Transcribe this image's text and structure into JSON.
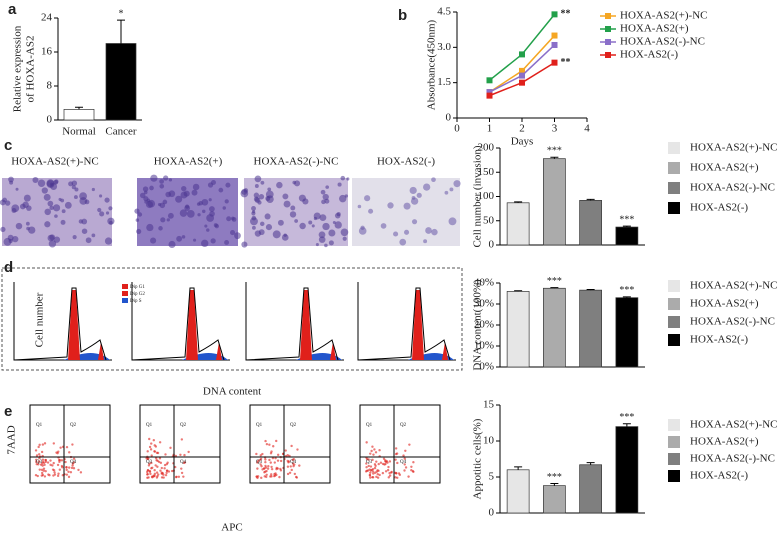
{
  "chart_data": [
    {
      "type": "bar",
      "panel": "a",
      "categories": [
        "Normal",
        "Cancer"
      ],
      "values": [
        2.5,
        18
      ],
      "errors": [
        0.5,
        5.5
      ],
      "significance": [
        null,
        "*"
      ],
      "colors": [
        "#ffffff",
        "#000000"
      ],
      "ylim": [
        0,
        24
      ],
      "yticks": [
        0,
        8,
        16,
        24
      ],
      "ylabel": [
        "Relative expression",
        "of HOXA-AS2"
      ]
    },
    {
      "type": "line",
      "panel": "b",
      "x": [
        1,
        2,
        3
      ],
      "xlim": [
        0,
        4
      ],
      "xticks": [
        0,
        1,
        2,
        3,
        4
      ],
      "ylim": [
        0,
        4.5
      ],
      "yticks": [
        0,
        1.5,
        {
          "value": 3,
          "label": "3.0"
        },
        4.5
      ],
      "xlabel": "Days",
      "ylabel": "Absorbance(450nm)",
      "series": [
        {
          "name": "HOXA-AS2(+)-NC",
          "color": "#f5a623",
          "values": [
            1.1,
            2.0,
            3.5
          ]
        },
        {
          "name": "HOXA-AS2(+)",
          "color": "#22a04a",
          "values": [
            1.6,
            2.7,
            4.4
          ],
          "end_label": "**"
        },
        {
          "name": "HOXA-AS2(-)-NC",
          "color": "#8a6fc9",
          "values": [
            1.1,
            1.8,
            3.1
          ]
        },
        {
          "name": "HOX-AS2(-)",
          "color": "#e0201b",
          "values": [
            0.95,
            1.5,
            2.35
          ],
          "end_label": "**"
        }
      ]
    },
    {
      "type": "bar",
      "panel": "c",
      "legend": "right",
      "image_labels": [
        "HOXA-AS2(+)-NC",
        "HOXA-AS2(+)",
        "HOXA-AS2(-)-NC",
        "HOX-AS2(-)"
      ],
      "categories": [
        "HOXA-AS2(+)-NC",
        "HOXA-AS2(+)",
        "HOXA-AS2(-)-NC",
        "HOX-AS2(-)"
      ],
      "colors": [
        "#e6e6e6",
        "#ababab",
        "#7f7f7f",
        "#000000"
      ],
      "values": [
        87,
        178,
        92,
        37
      ],
      "errors": [
        2,
        3,
        2,
        2
      ],
      "significance": [
        null,
        "***",
        null,
        "***"
      ],
      "ylim": [
        0,
        200
      ],
      "yticks": [
        0,
        50,
        100,
        150,
        200
      ],
      "ylabel": "Cell number (invasion)"
    },
    {
      "type": "bar",
      "panel": "d",
      "legend": "right",
      "plot_ylabel": "Cell number",
      "plot_xlabel": "DNA content",
      "inset_legend": [
        {
          "name": "Dip G1",
          "color": "#e0201b"
        },
        {
          "name": "Dip G2",
          "color": "#e0201b"
        },
        {
          "name": "Dip S",
          "color": "#2255cc"
        }
      ],
      "categories": [
        "HOXA-AS2(+)-NC",
        "HOXA-AS2(+)",
        "HOXA-AS2(-)-NC",
        "HOX-AS2(-)"
      ],
      "colors": [
        "#e6e6e6",
        "#ababab",
        "#7f7f7f",
        "#000000"
      ],
      "values": [
        36,
        37.5,
        36.6,
        33
      ],
      "errors": [
        0.3,
        0.3,
        0.3,
        0.4
      ],
      "significance": [
        null,
        "***",
        null,
        "***"
      ],
      "ylim": [
        0,
        40
      ],
      "yticks": [
        {
          "value": 0,
          "label": "0%"
        },
        {
          "value": 10,
          "label": "10%"
        },
        {
          "value": 20,
          "label": "20%"
        },
        {
          "value": 30,
          "label": "30%"
        },
        {
          "value": 40,
          "label": "40%"
        }
      ],
      "ylabel": "DNA content(100%)"
    },
    {
      "type": "bar",
      "panel": "e",
      "legend": "right",
      "plot_ylabel": "7AAD",
      "plot_xlabel": "APC",
      "quadrant_labels": [
        "Q1",
        "Q2",
        "Q3",
        "Q4"
      ],
      "categories": [
        "HOXA-AS2(+)-NC",
        "HOXA-AS2(+)",
        "HOXA-AS2(-)-NC",
        "HOX-AS2(-)"
      ],
      "colors": [
        "#e6e6e6",
        "#ababab",
        "#7f7f7f",
        "#000000"
      ],
      "values": [
        6,
        3.8,
        6.7,
        12
      ],
      "errors": [
        0.4,
        0.3,
        0.3,
        0.4
      ],
      "significance": [
        null,
        "***",
        null,
        "***"
      ],
      "ylim": [
        0,
        15
      ],
      "yticks": [
        0,
        5,
        10,
        15
      ],
      "ylabel": "Appotitic cells(%)"
    }
  ]
}
